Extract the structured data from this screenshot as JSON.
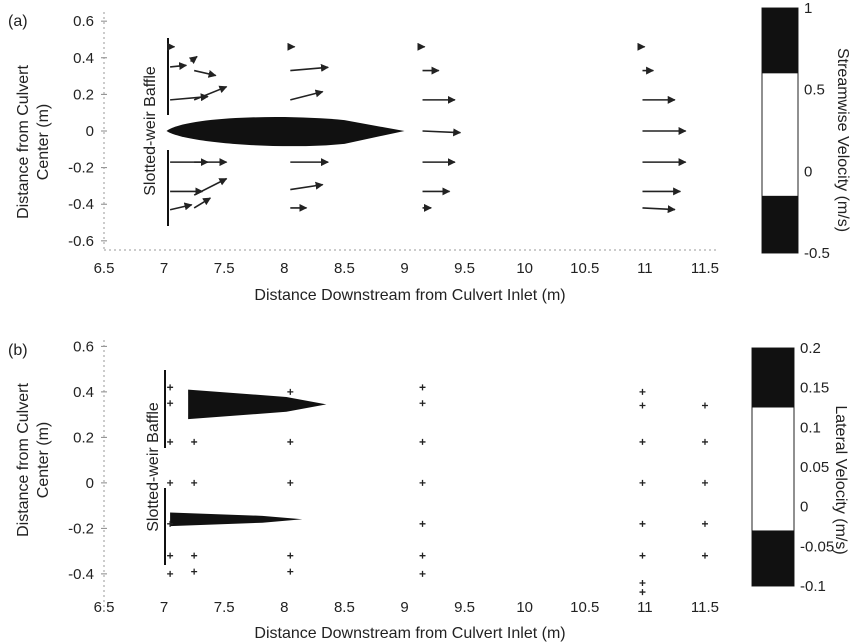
{
  "chart_data": [
    {
      "panel_label": "(a)",
      "type": "scatter",
      "xlabel": "Distance Downstream from Culvert Inlet (m)",
      "ylabel_lines": [
        "Distance from Culvert",
        "Center (m)"
      ],
      "baffle_label": "Slotted-weir Baffle",
      "xlim": [
        6.5,
        11.6
      ],
      "ylim": [
        -0.65,
        0.65
      ],
      "xticks": [
        "6.5",
        "7",
        "7.5",
        "8",
        "8.5",
        "9",
        "9.5",
        "10",
        "10.5",
        "11",
        "11.5"
      ],
      "yticks": [
        "0.6",
        "0.4",
        "0.2",
        "0",
        "-0.2",
        "-0.4",
        "-0.6"
      ],
      "colorbar": {
        "label": "Streamwise Velocity (m/s)",
        "range": [
          -0.5,
          1
        ],
        "ticks": [
          "1",
          "0.5",
          "0",
          "-0.5"
        ],
        "dark_bands": [
          [
            0.6,
            1.0
          ],
          [
            -0.5,
            -0.15
          ]
        ]
      },
      "jet_band": {
        "x_start": 7.02,
        "x_end": 9.0,
        "y": 0.0,
        "half_width": 0.07
      },
      "vectors": [
        {
          "x": 7.05,
          "y": 0.46,
          "u": 0.04,
          "v": 0.0
        },
        {
          "x": 7.05,
          "y": 0.35,
          "u": 0.15,
          "v": 0.01
        },
        {
          "x": 7.22,
          "y": 0.38,
          "u": 0.06,
          "v": 0.03
        },
        {
          "x": 7.25,
          "y": 0.33,
          "u": 0.2,
          "v": -0.03
        },
        {
          "x": 7.05,
          "y": 0.17,
          "u": 0.35,
          "v": 0.02
        },
        {
          "x": 7.25,
          "y": 0.17,
          "u": 0.3,
          "v": 0.08
        },
        {
          "x": 7.05,
          "y": -0.17,
          "u": 0.35,
          "v": 0.0
        },
        {
          "x": 7.25,
          "y": -0.17,
          "u": 0.3,
          "v": 0.0
        },
        {
          "x": 7.05,
          "y": -0.33,
          "u": 0.3,
          "v": 0.0
        },
        {
          "x": 7.25,
          "y": -0.35,
          "u": 0.3,
          "v": 0.1
        },
        {
          "x": 7.05,
          "y": -0.43,
          "u": 0.2,
          "v": 0.03
        },
        {
          "x": 7.25,
          "y": -0.42,
          "u": 0.15,
          "v": 0.06
        },
        {
          "x": 8.05,
          "y": 0.46,
          "u": 0.04,
          "v": 0.0
        },
        {
          "x": 8.05,
          "y": 0.33,
          "u": 0.35,
          "v": 0.02
        },
        {
          "x": 8.05,
          "y": 0.17,
          "u": 0.3,
          "v": 0.05
        },
        {
          "x": 8.05,
          "y": -0.17,
          "u": 0.35,
          "v": 0.0
        },
        {
          "x": 8.05,
          "y": -0.32,
          "u": 0.3,
          "v": 0.03
        },
        {
          "x": 8.05,
          "y": -0.42,
          "u": 0.15,
          "v": 0.0
        },
        {
          "x": 9.15,
          "y": 0.46,
          "u": 0.02,
          "v": 0.0
        },
        {
          "x": 9.15,
          "y": 0.33,
          "u": 0.15,
          "v": 0.0
        },
        {
          "x": 9.15,
          "y": 0.17,
          "u": 0.3,
          "v": 0.0
        },
        {
          "x": 9.15,
          "y": 0.0,
          "u": 0.35,
          "v": -0.01
        },
        {
          "x": 9.15,
          "y": -0.17,
          "u": 0.3,
          "v": 0.0
        },
        {
          "x": 9.15,
          "y": -0.33,
          "u": 0.25,
          "v": 0.0
        },
        {
          "x": 9.15,
          "y": -0.42,
          "u": 0.08,
          "v": 0.0
        },
        {
          "x": 10.98,
          "y": 0.46,
          "u": 0.02,
          "v": 0.0
        },
        {
          "x": 10.98,
          "y": 0.33,
          "u": 0.1,
          "v": 0.0
        },
        {
          "x": 10.98,
          "y": 0.17,
          "u": 0.3,
          "v": 0.0
        },
        {
          "x": 10.98,
          "y": 0.0,
          "u": 0.4,
          "v": 0.0
        },
        {
          "x": 10.98,
          "y": -0.17,
          "u": 0.4,
          "v": 0.0
        },
        {
          "x": 10.98,
          "y": -0.33,
          "u": 0.35,
          "v": 0.0
        },
        {
          "x": 10.98,
          "y": -0.42,
          "u": 0.3,
          "v": -0.01
        }
      ]
    },
    {
      "panel_label": "(b)",
      "type": "scatter",
      "xlabel": "Distance Downstream from Culvert Inlet (m)",
      "ylabel_lines": [
        "Distance from Culvert",
        "Center (m)"
      ],
      "baffle_label": "Slotted-weir Baffle",
      "xlim": [
        6.5,
        11.6
      ],
      "ylim": [
        -0.55,
        0.65
      ],
      "xticks": [
        "6.5",
        "7",
        "7.5",
        "8",
        "8.5",
        "9",
        "9.5",
        "10",
        "10.5",
        "11",
        "11.5"
      ],
      "yticks": [
        "0.6",
        "0.4",
        "0.2",
        "0",
        "-0.2",
        "-0.4"
      ],
      "colorbar": {
        "label": "Lateral Velocity (m/s)",
        "range": [
          -0.1,
          0.2
        ],
        "ticks": [
          "0.2",
          "0.15",
          "0.1",
          "0.05",
          "0",
          "-0.05",
          "-0.1"
        ],
        "dark_bands": [
          [
            0.125,
            0.2
          ],
          [
            -0.1,
            -0.03
          ]
        ]
      },
      "bands": [
        {
          "x_start": 7.2,
          "x_end": 8.35,
          "y_top": 0.41,
          "y_bottom": 0.28
        },
        {
          "x_start": 7.05,
          "x_end": 8.15,
          "y_top": -0.13,
          "y_bottom": -0.19
        }
      ],
      "markers": [
        {
          "x": 7.05,
          "y": 0.42
        },
        {
          "x": 7.05,
          "y": 0.35
        },
        {
          "x": 7.05,
          "y": 0.18
        },
        {
          "x": 7.05,
          "y": 0.0
        },
        {
          "x": 7.05,
          "y": -0.18
        },
        {
          "x": 7.05,
          "y": -0.32
        },
        {
          "x": 7.05,
          "y": -0.4
        },
        {
          "x": 7.25,
          "y": 0.18
        },
        {
          "x": 7.25,
          "y": 0.0
        },
        {
          "x": 7.25,
          "y": -0.32
        },
        {
          "x": 7.25,
          "y": -0.39
        },
        {
          "x": 8.05,
          "y": 0.4
        },
        {
          "x": 8.05,
          "y": 0.18
        },
        {
          "x": 8.05,
          "y": 0.0
        },
        {
          "x": 8.05,
          "y": -0.32
        },
        {
          "x": 8.05,
          "y": -0.39
        },
        {
          "x": 9.15,
          "y": 0.42
        },
        {
          "x": 9.15,
          "y": 0.35
        },
        {
          "x": 9.15,
          "y": 0.18
        },
        {
          "x": 9.15,
          "y": 0.0
        },
        {
          "x": 9.15,
          "y": -0.18
        },
        {
          "x": 9.15,
          "y": -0.32
        },
        {
          "x": 9.15,
          "y": -0.4
        },
        {
          "x": 10.98,
          "y": 0.4
        },
        {
          "x": 10.98,
          "y": 0.34
        },
        {
          "x": 10.98,
          "y": 0.18
        },
        {
          "x": 10.98,
          "y": 0.0
        },
        {
          "x": 10.98,
          "y": -0.18
        },
        {
          "x": 10.98,
          "y": -0.32
        },
        {
          "x": 10.98,
          "y": -0.44
        },
        {
          "x": 10.98,
          "y": -0.48
        },
        {
          "x": 11.5,
          "y": 0.34
        },
        {
          "x": 11.5,
          "y": 0.18
        },
        {
          "x": 11.5,
          "y": 0.0
        },
        {
          "x": 11.5,
          "y": -0.18
        },
        {
          "x": 11.5,
          "y": -0.32
        }
      ]
    }
  ]
}
